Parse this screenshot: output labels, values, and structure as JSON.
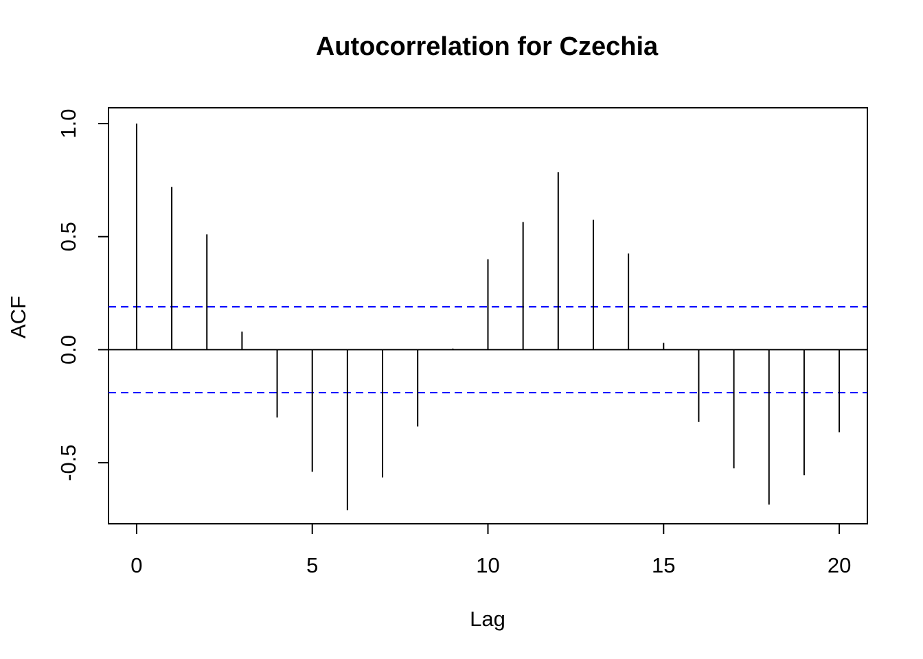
{
  "chart_data": {
    "type": "bar",
    "title": "Autocorrelation for Czechia",
    "xlabel": "Lag",
    "ylabel": "ACF",
    "x_ticks": [
      "0",
      "5",
      "10",
      "15",
      "20"
    ],
    "y_ticks": [
      "-0.5",
      "0.0",
      "0.5",
      "1.0"
    ],
    "xlim": [
      -0.8,
      20.8
    ],
    "ylim": [
      -0.77,
      1.07
    ],
    "lags": [
      0,
      1,
      2,
      3,
      4,
      5,
      6,
      7,
      8,
      9,
      10,
      11,
      12,
      13,
      14,
      15,
      16,
      17,
      18,
      19,
      20
    ],
    "acf": [
      1.0,
      0.72,
      0.51,
      0.08,
      -0.3,
      -0.54,
      -0.71,
      -0.565,
      -0.34,
      0.005,
      0.4,
      0.565,
      0.785,
      0.575,
      0.425,
      0.03,
      -0.32,
      -0.525,
      -0.685,
      -0.555,
      -0.365
    ],
    "confidence_bound": 0.19,
    "ci_color": "#0000ff",
    "grid": false
  }
}
